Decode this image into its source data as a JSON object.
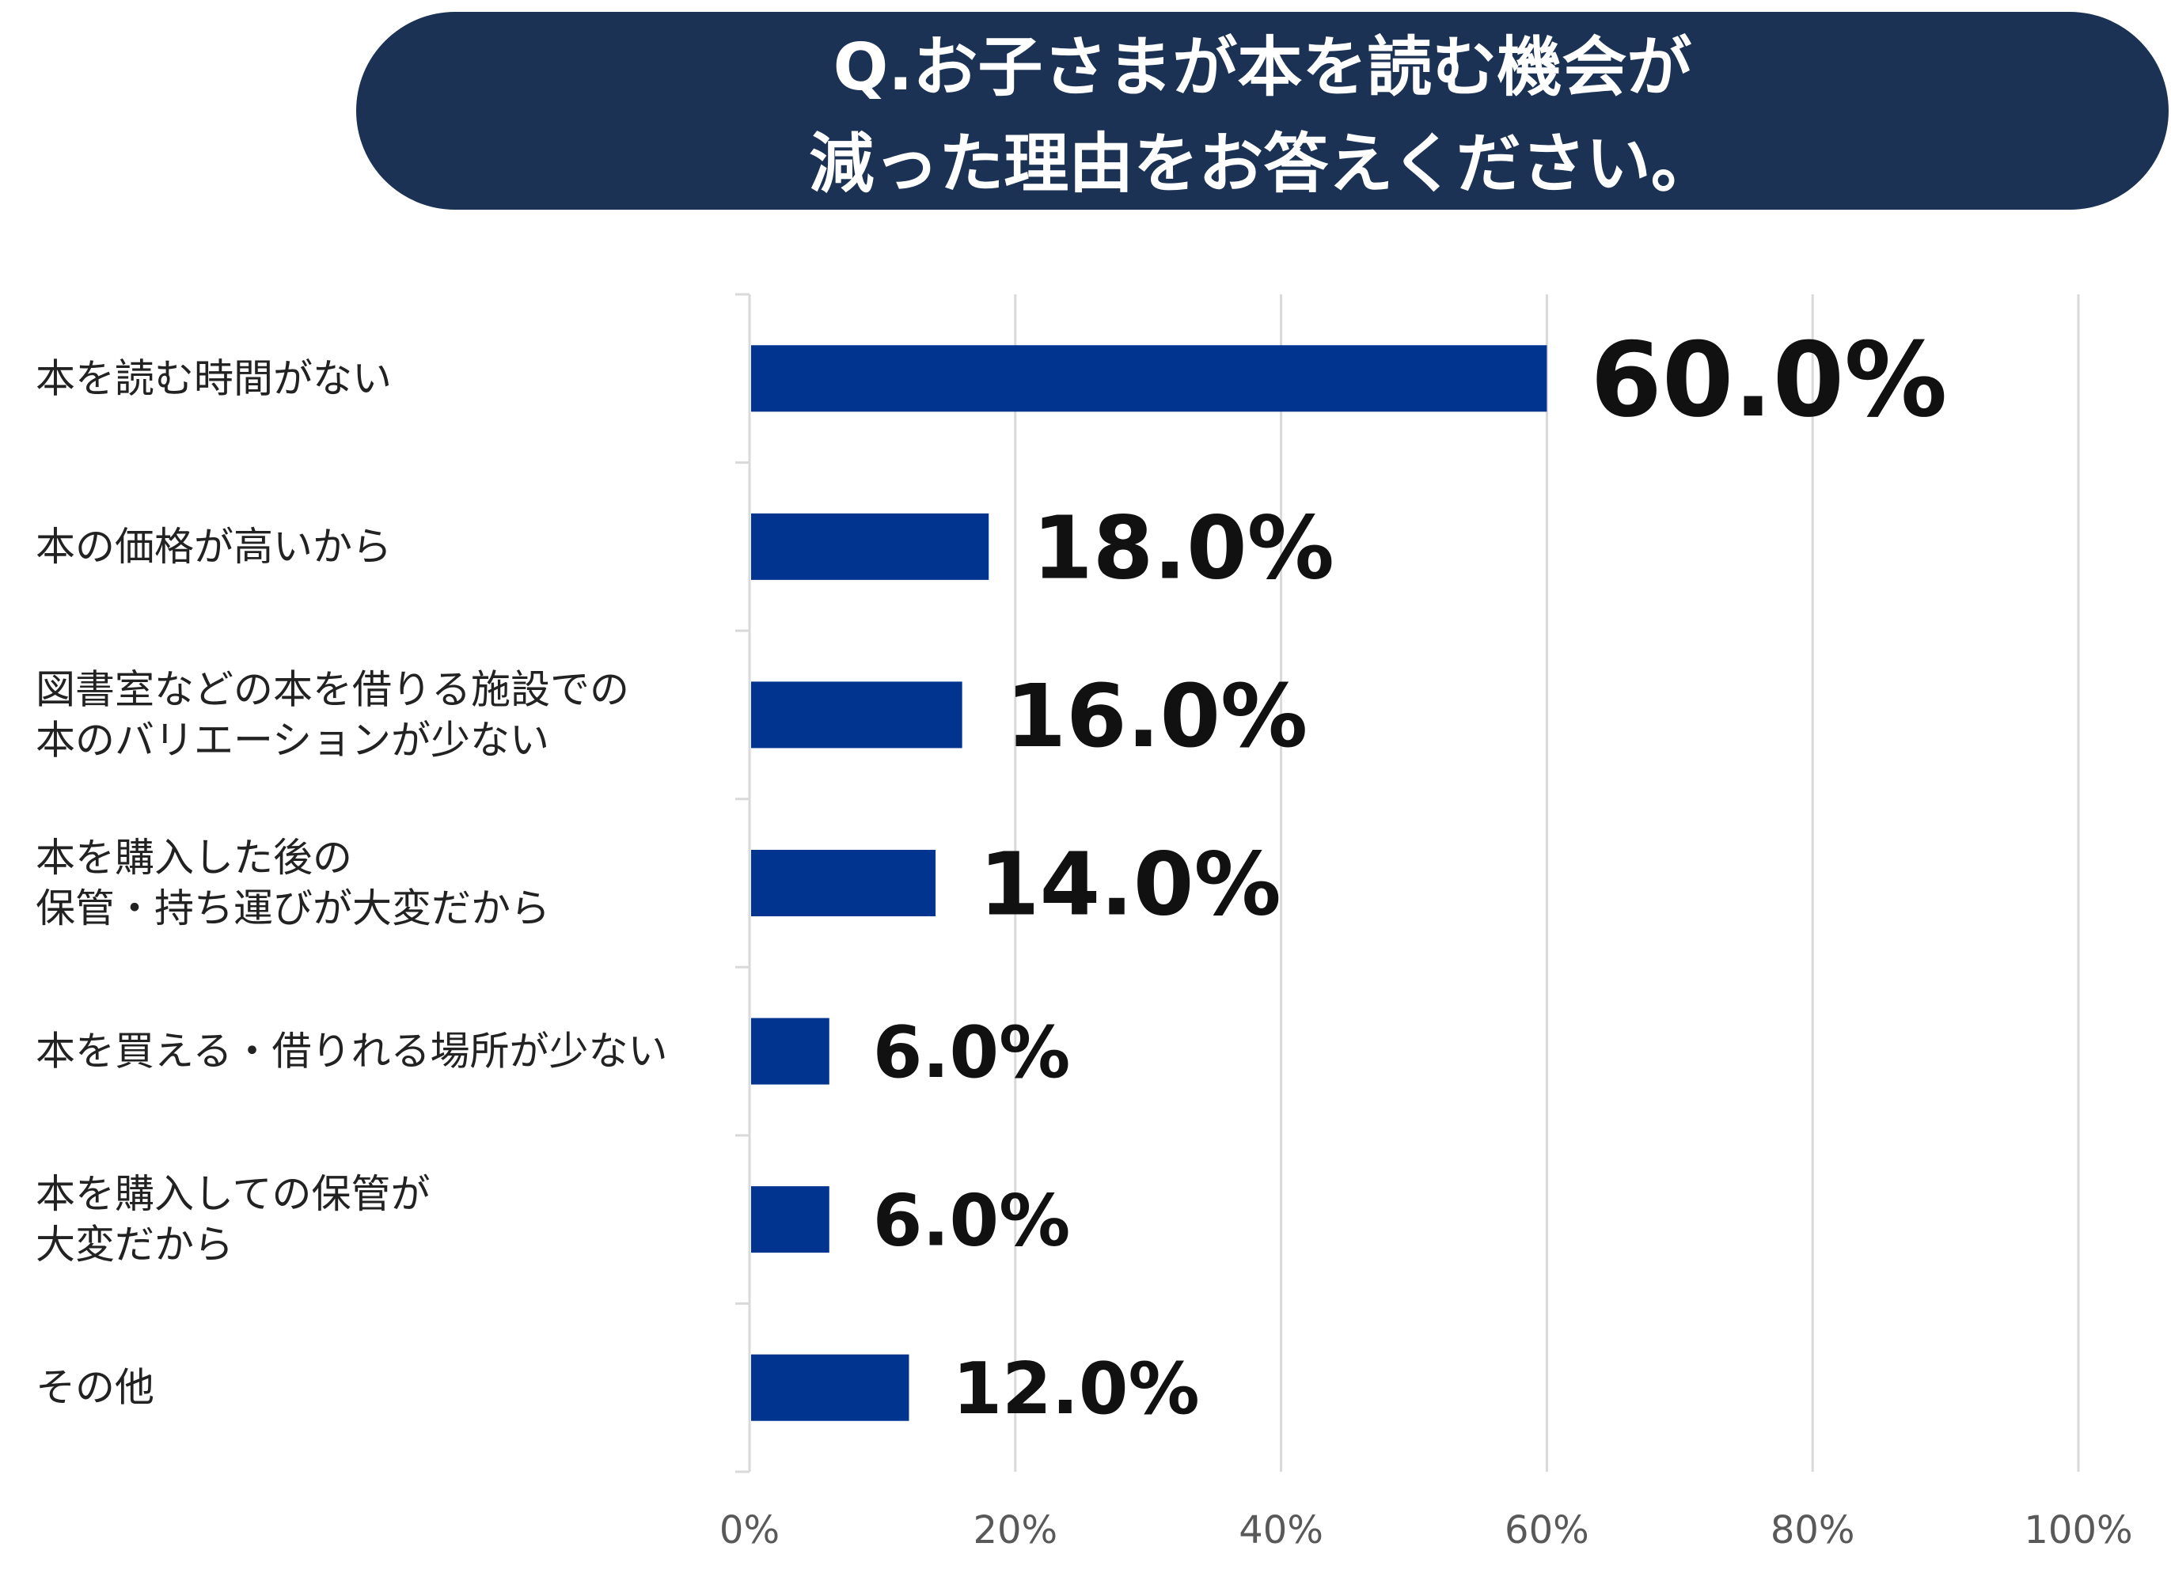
{
  "title": {
    "line1": "Q.お子さまが本を読む機会が",
    "line2": "減った理由をお答えください。"
  },
  "colors": {
    "banner": "#1b3254",
    "bar": "#00348f",
    "grid": "#d9d9d9",
    "value_text": "#111111"
  },
  "chart_data": {
    "type": "bar",
    "orientation": "horizontal",
    "categories": [
      [
        "本を読む時間がない"
      ],
      [
        "本の価格が高いから"
      ],
      [
        "図書室などの本を借りる施設での",
        "本のバリエーションが少ない"
      ],
      [
        "本を購入した後の",
        "保管・持ち運びが大変だから"
      ],
      [
        "本を買える・借りれる場所が少ない"
      ],
      [
        "本を購入しての保管が",
        "大変だから"
      ],
      [
        "その他"
      ]
    ],
    "values": [
      60.0,
      18.0,
      16.0,
      14.0,
      6.0,
      6.0,
      12.0
    ],
    "value_labels": [
      "60.0%",
      "18.0%",
      "16.0%",
      "14.0%",
      "6.0%",
      "6.0%",
      "12.0%"
    ],
    "xlim": [
      0,
      100
    ],
    "xticks": [
      0,
      20,
      40,
      60,
      80,
      100
    ],
    "xtick_labels": [
      "0%",
      "20%",
      "40%",
      "60%",
      "80%",
      "100%"
    ],
    "grid": true
  }
}
